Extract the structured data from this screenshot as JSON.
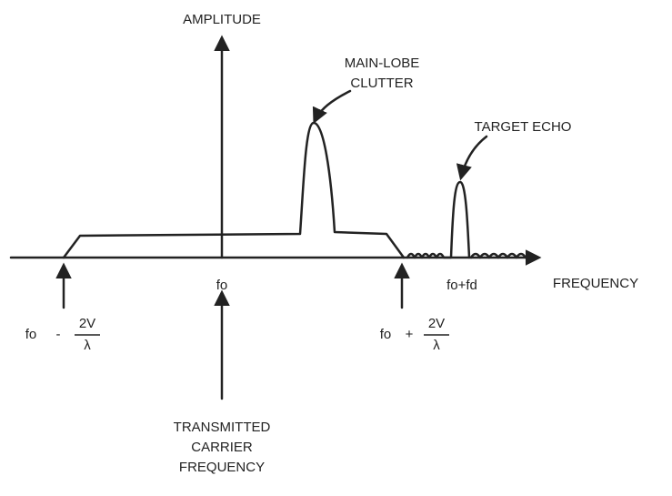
{
  "axes": {
    "y_label": "AMPLITUDE",
    "x_label": "FREQUENCY"
  },
  "annotations": {
    "main_lobe": [
      "MAIN-LOBE",
      "CLUTTER"
    ],
    "target": "TARGET ECHO",
    "carrier": [
      "TRANSMITTED",
      "CARRIER",
      "FREQUENCY"
    ]
  },
  "markers": {
    "fo": "fo",
    "fo_fd": "fo+fd",
    "lower": {
      "base": "fo",
      "op": "-",
      "num": "2V",
      "den": "λ"
    },
    "upper": {
      "base": "fo",
      "op": "+",
      "num": "2V",
      "den": "λ"
    }
  }
}
